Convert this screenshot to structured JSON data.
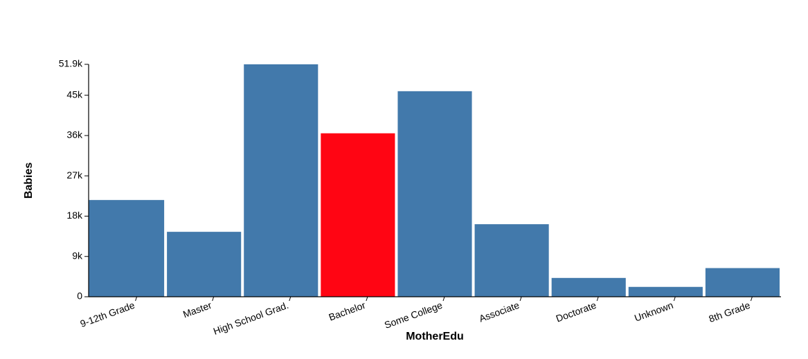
{
  "chart_data": {
    "type": "bar",
    "categories": [
      "9-12th Grade",
      "Master",
      "High School Grad.",
      "Bachelor",
      "Some College",
      "Associate",
      "Doctorate",
      "Unknown",
      "8th Grade"
    ],
    "values": [
      21600,
      14500,
      51900,
      36500,
      45900,
      16200,
      4200,
      2200,
      6400
    ],
    "highlighted_category": "Bachelor",
    "bar_color": "#4279ab",
    "highlight_color": "#ff0513",
    "xlabel": "MotherEdu",
    "ylabel": "Babies",
    "ylim": [
      0,
      51900
    ],
    "yticks": [
      0,
      9000,
      18000,
      27000,
      36000,
      45000,
      51900
    ],
    "ytick_labels": [
      "0",
      "9k",
      "18k",
      "27k",
      "36k",
      "45k",
      "51.9k"
    ],
    "grid": false,
    "legend": "none"
  }
}
